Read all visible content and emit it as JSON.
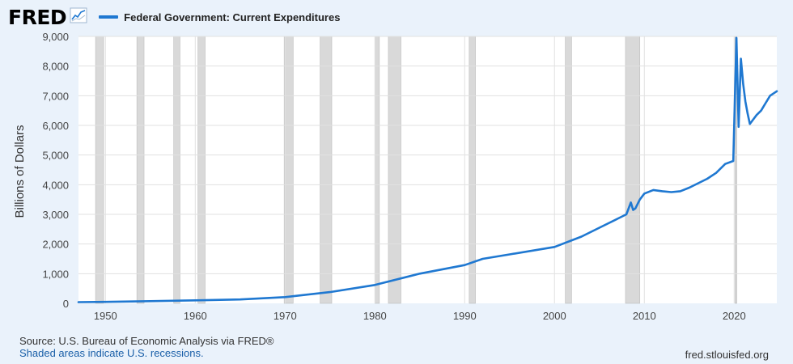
{
  "header": {
    "logo_text": "FRED",
    "legend_label": "Federal Government: Current Expenditures"
  },
  "colors": {
    "series": "#1f78d1",
    "recession": "#d9d9d9",
    "background": "#eaf2fb"
  },
  "footer": {
    "source": "Source: U.S. Bureau of Economic Analysis via FRED®",
    "recession_note": "Shaded areas indicate U.S. recessions.",
    "url": "fred.stlouisfed.org"
  },
  "chart_data": {
    "type": "line",
    "title": "",
    "xlabel": "",
    "ylabel": "Billions of Dollars",
    "xlim": [
      1947,
      2024.75
    ],
    "ylim": [
      0,
      9000
    ],
    "x_ticks": [
      1950,
      1960,
      1970,
      1980,
      1990,
      2000,
      2010,
      2020
    ],
    "y_ticks": [
      0,
      1000,
      2000,
      3000,
      4000,
      5000,
      6000,
      7000,
      8000,
      9000
    ],
    "y_tick_labels": [
      "0",
      "1,000",
      "2,000",
      "3,000",
      "4,000",
      "5,000",
      "6,000",
      "7,000",
      "8,000",
      "9,000"
    ],
    "grid": true,
    "legend": "top-left",
    "recessions": [
      [
        1948.9,
        1949.8
      ],
      [
        1953.5,
        1954.3
      ],
      [
        1957.6,
        1958.3
      ],
      [
        1960.3,
        1961.1
      ],
      [
        1969.9,
        1970.9
      ],
      [
        1973.9,
        1975.2
      ],
      [
        1980.0,
        1980.5
      ],
      [
        1981.5,
        1982.9
      ],
      [
        1990.5,
        1991.2
      ],
      [
        2001.2,
        2001.9
      ],
      [
        2007.9,
        2009.5
      ],
      [
        2020.1,
        2020.3
      ]
    ],
    "series": [
      {
        "name": "Federal Government: Current Expenditures",
        "x": [
          1947,
          1950,
          1955,
          1960,
          1965,
          1970,
          1975,
          1980,
          1985,
          1990,
          1992,
          1995,
          2000,
          2003,
          2005,
          2007,
          2008,
          2008.5,
          2008.75,
          2009,
          2009.5,
          2010,
          2011,
          2012,
          2013,
          2014,
          2015,
          2016,
          2017,
          2018,
          2019,
          2019.9,
          2020.25,
          2020.5,
          2020.75,
          2021,
          2021.25,
          2021.5,
          2021.75,
          2022,
          2022.5,
          2023,
          2023.5,
          2024,
          2024.75
        ],
        "y": [
          40,
          50,
          75,
          100,
          130,
          210,
          380,
          620,
          1000,
          1290,
          1500,
          1650,
          1900,
          2250,
          2550,
          2850,
          3000,
          3400,
          3150,
          3200,
          3500,
          3700,
          3820,
          3780,
          3750,
          3780,
          3900,
          4050,
          4200,
          4400,
          4700,
          4800,
          8950,
          5950,
          8250,
          7400,
          6800,
          6400,
          6050,
          6150,
          6350,
          6500,
          6750,
          7000,
          7150
        ]
      }
    ]
  }
}
